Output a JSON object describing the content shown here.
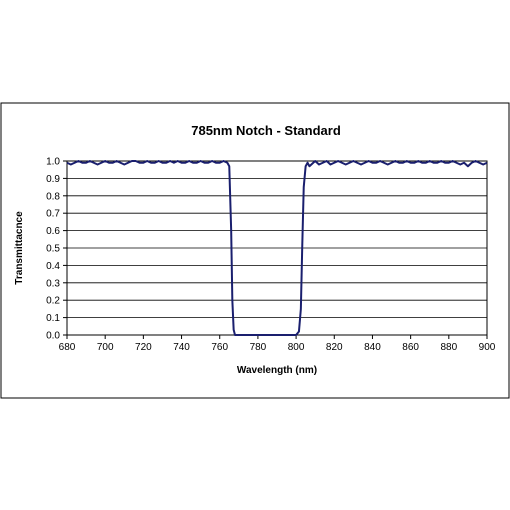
{
  "chart_data": {
    "type": "line",
    "title": "785nm Notch - Standard",
    "xlabel": "Wavelength (nm)",
    "ylabel": "Transmittacnce",
    "xlim": [
      680,
      900
    ],
    "ylim": [
      0.0,
      1.0
    ],
    "x_ticks": [
      "680",
      "700",
      "720",
      "740",
      "760",
      "780",
      "800",
      "820",
      "840",
      "860",
      "880",
      "900"
    ],
    "y_ticks": [
      "0.0",
      "0.1",
      "0.2",
      "0.3",
      "0.4",
      "0.5",
      "0.6",
      "0.7",
      "0.8",
      "0.9",
      "1.0"
    ],
    "grid": "horizontal",
    "legend": "none",
    "series": [
      {
        "color": "#1a1f6e",
        "points": [
          [
            680,
            0.99
          ],
          [
            682,
            0.98
          ],
          [
            684,
            0.99
          ],
          [
            686,
            1.0
          ],
          [
            688,
            0.99
          ],
          [
            690,
            0.99
          ],
          [
            692,
            1.0
          ],
          [
            694,
            0.99
          ],
          [
            696,
            0.98
          ],
          [
            698,
            0.99
          ],
          [
            700,
            1.0
          ],
          [
            702,
            0.99
          ],
          [
            704,
            0.99
          ],
          [
            706,
            1.0
          ],
          [
            708,
            0.99
          ],
          [
            710,
            0.98
          ],
          [
            712,
            0.99
          ],
          [
            714,
            1.0
          ],
          [
            716,
            1.0
          ],
          [
            718,
            0.99
          ],
          [
            720,
            0.99
          ],
          [
            722,
            1.0
          ],
          [
            724,
            0.99
          ],
          [
            726,
            0.99
          ],
          [
            728,
            1.0
          ],
          [
            730,
            0.99
          ],
          [
            732,
            0.99
          ],
          [
            734,
            1.0
          ],
          [
            736,
            0.99
          ],
          [
            738,
            1.0
          ],
          [
            740,
            0.99
          ],
          [
            742,
            0.99
          ],
          [
            744,
            1.0
          ],
          [
            746,
            0.99
          ],
          [
            748,
            0.99
          ],
          [
            750,
            1.0
          ],
          [
            752,
            0.99
          ],
          [
            754,
            0.99
          ],
          [
            756,
            1.0
          ],
          [
            758,
            0.99
          ],
          [
            760,
            0.99
          ],
          [
            762,
            1.0
          ],
          [
            764,
            0.99
          ],
          [
            765,
            0.97
          ],
          [
            766,
            0.6
          ],
          [
            766.6,
            0.2
          ],
          [
            767.3,
            0.03
          ],
          [
            768,
            0.0
          ],
          [
            772,
            0.0
          ],
          [
            780,
            0.0
          ],
          [
            790,
            0.0
          ],
          [
            800,
            0.0
          ],
          [
            801.5,
            0.02
          ],
          [
            802.5,
            0.15
          ],
          [
            803.2,
            0.5
          ],
          [
            804,
            0.85
          ],
          [
            805,
            0.97
          ],
          [
            806,
            0.99
          ],
          [
            807,
            0.97
          ],
          [
            808,
            0.98
          ],
          [
            810,
            1.0
          ],
          [
            812,
            0.98
          ],
          [
            814,
            0.99
          ],
          [
            816,
            1.0
          ],
          [
            818,
            0.98
          ],
          [
            820,
            0.99
          ],
          [
            822,
            1.0
          ],
          [
            824,
            0.99
          ],
          [
            826,
            0.98
          ],
          [
            828,
            0.99
          ],
          [
            830,
            1.0
          ],
          [
            832,
            0.99
          ],
          [
            834,
            0.98
          ],
          [
            836,
            0.99
          ],
          [
            838,
            1.0
          ],
          [
            840,
            0.99
          ],
          [
            842,
            0.99
          ],
          [
            844,
            1.0
          ],
          [
            846,
            0.99
          ],
          [
            848,
            0.98
          ],
          [
            850,
            0.99
          ],
          [
            852,
            1.0
          ],
          [
            854,
            0.99
          ],
          [
            856,
            0.99
          ],
          [
            858,
            1.0
          ],
          [
            860,
            0.99
          ],
          [
            862,
            0.99
          ],
          [
            864,
            1.0
          ],
          [
            866,
            0.99
          ],
          [
            868,
            0.99
          ],
          [
            870,
            1.0
          ],
          [
            872,
            0.99
          ],
          [
            874,
            0.99
          ],
          [
            876,
            1.0
          ],
          [
            878,
            0.99
          ],
          [
            880,
            0.99
          ],
          [
            882,
            1.0
          ],
          [
            884,
            0.99
          ],
          [
            886,
            0.98
          ],
          [
            888,
            0.99
          ],
          [
            890,
            0.97
          ],
          [
            892,
            0.99
          ],
          [
            894,
            1.0
          ],
          [
            896,
            0.99
          ],
          [
            898,
            0.98
          ],
          [
            900,
            0.99
          ]
        ]
      }
    ]
  }
}
